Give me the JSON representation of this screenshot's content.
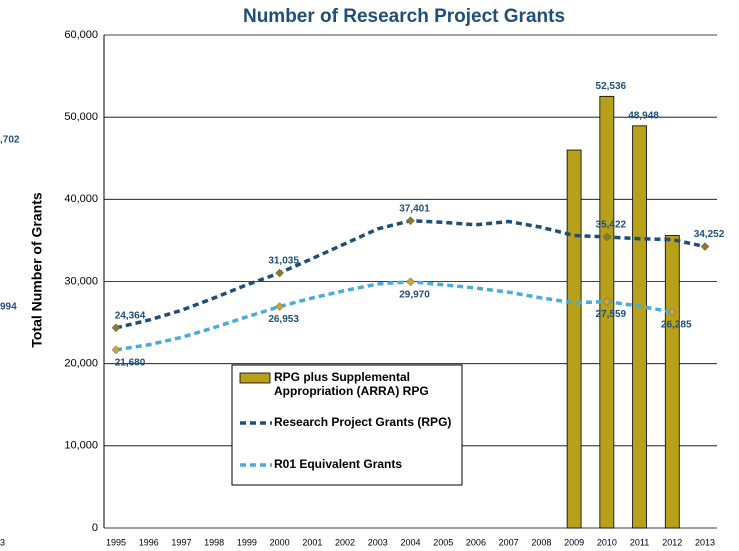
{
  "chart_data": {
    "type": "bar_line",
    "title": "Number of Research Project Grants",
    "y_label": "Total Number of Grants",
    "fragments": [
      ",702",
      "994",
      "3"
    ],
    "categories": [
      "1995",
      "1996",
      "1997",
      "1998",
      "1999",
      "2000",
      "2001",
      "2002",
      "2003",
      "2004",
      "2005",
      "2006",
      "2007",
      "2008",
      "2009",
      "2010",
      "2011",
      "2012",
      "2013"
    ],
    "ylim": [
      0,
      60000
    ],
    "yticks": [
      0,
      {
        "value": 10000,
        "label": "10,000"
      },
      {
        "value": 20000,
        "label": "20,000"
      },
      {
        "value": 30000,
        "label": "30,000"
      },
      {
        "value": 40000,
        "label": "40,000"
      },
      {
        "value": 50000,
        "label": "50,000"
      },
      {
        "value": 60000,
        "label": "60,000"
      }
    ],
    "grid": true,
    "series": [
      {
        "name": "RPG plus Supplemental Appropriation (ARRA) RPG",
        "kind": "bar",
        "color": "#b8a11a",
        "values": [
          null,
          null,
          null,
          null,
          null,
          null,
          null,
          null,
          null,
          null,
          null,
          null,
          null,
          null,
          46000,
          52536,
          48948,
          35600,
          null
        ],
        "value_labels": [
          null,
          null,
          null,
          null,
          null,
          null,
          null,
          null,
          null,
          null,
          null,
          null,
          null,
          null,
          null,
          "52,536",
          "48,948",
          null,
          null
        ]
      },
      {
        "name": "Research Project Grants (RPG)",
        "kind": "line",
        "color": "#1f4e79",
        "values": [
          24364,
          25300,
          26500,
          28000,
          29600,
          31035,
          32800,
          34600,
          36400,
          37401,
          37200,
          36900,
          37300,
          36600,
          35600,
          35422,
          35200,
          35100,
          34252
        ],
        "value_labels": [
          "24,364",
          null,
          null,
          null,
          null,
          "31,035",
          null,
          null,
          null,
          "37,401",
          null,
          null,
          null,
          null,
          null,
          "35,422",
          null,
          null,
          "34,252"
        ]
      },
      {
        "name": "R01 Equivalent Grants",
        "kind": "line",
        "color": "#4bacd6",
        "values": [
          21680,
          22300,
          23200,
          24400,
          25700,
          26953,
          28000,
          28900,
          29700,
          29970,
          29600,
          29200,
          28700,
          28000,
          27400,
          27559,
          27000,
          26285,
          null
        ],
        "value_labels": [
          "21,680",
          null,
          null,
          null,
          null,
          "26,953",
          null,
          null,
          null,
          "29,970",
          null,
          null,
          null,
          null,
          null,
          "27,559",
          null,
          "26,285",
          null
        ]
      }
    ]
  }
}
